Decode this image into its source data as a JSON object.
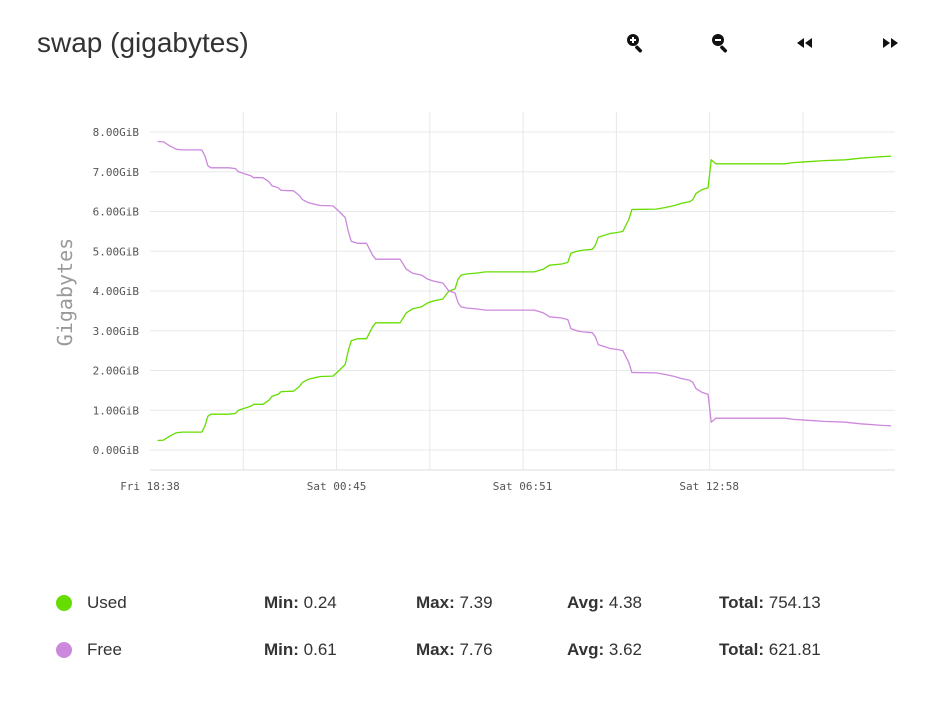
{
  "title": "swap (gigabytes)",
  "toolbar": {
    "zoom_in": "zoom-in-icon",
    "zoom_out": "zoom-out-icon",
    "rewind": "rewind-icon",
    "fast_forward": "fast-forward-icon"
  },
  "colors": {
    "used": "#66dd00",
    "free": "#cc88dd",
    "grid": "#e8e8e8"
  },
  "chart_data": {
    "type": "line",
    "ylabel": "Gigabytes",
    "xlabel": "",
    "ylim": [
      0,
      8
    ],
    "yticks": [
      "0.00GiB",
      "1.00GiB",
      "2.00GiB",
      "3.00GiB",
      "4.00GiB",
      "5.00GiB",
      "6.00GiB",
      "7.00GiB",
      "8.00GiB"
    ],
    "xticks": [
      "Fri 18:38",
      "Sat 00:45",
      "Sat 06:51",
      "Sat 12:58"
    ],
    "x_hours_since_first_tick": [
      0,
      6.1167,
      12.2167,
      18.3333
    ],
    "xlim_hours": [
      0.25,
      24.4
    ],
    "grid": true,
    "series": [
      {
        "name": "Used",
        "color": "#66dd00",
        "points": [
          [
            0.25,
            0.24
          ],
          [
            0.45,
            0.25
          ],
          [
            0.65,
            0.35
          ],
          [
            0.85,
            0.43
          ],
          [
            1.05,
            0.45
          ],
          [
            1.5,
            0.45
          ],
          [
            1.7,
            0.45
          ],
          [
            1.8,
            0.6
          ],
          [
            1.9,
            0.85
          ],
          [
            2.0,
            0.9
          ],
          [
            2.6,
            0.9
          ],
          [
            2.8,
            0.92
          ],
          [
            2.9,
            1.0
          ],
          [
            3.1,
            1.05
          ],
          [
            3.3,
            1.1
          ],
          [
            3.4,
            1.15
          ],
          [
            3.7,
            1.15
          ],
          [
            3.9,
            1.25
          ],
          [
            4.0,
            1.35
          ],
          [
            4.2,
            1.4
          ],
          [
            4.3,
            1.47
          ],
          [
            4.7,
            1.48
          ],
          [
            4.9,
            1.6
          ],
          [
            5.0,
            1.7
          ],
          [
            5.2,
            1.78
          ],
          [
            5.4,
            1.82
          ],
          [
            5.6,
            1.85
          ],
          [
            6.0,
            1.86
          ],
          [
            6.2,
            2.0
          ],
          [
            6.4,
            2.15
          ],
          [
            6.5,
            2.5
          ],
          [
            6.6,
            2.75
          ],
          [
            6.8,
            2.8
          ],
          [
            7.1,
            2.8
          ],
          [
            7.3,
            3.1
          ],
          [
            7.4,
            3.2
          ],
          [
            8.2,
            3.2
          ],
          [
            8.4,
            3.45
          ],
          [
            8.6,
            3.55
          ],
          [
            8.9,
            3.6
          ],
          [
            9.1,
            3.7
          ],
          [
            9.3,
            3.75
          ],
          [
            9.6,
            3.8
          ],
          [
            9.8,
            4.0
          ],
          [
            10.0,
            4.05
          ],
          [
            10.1,
            4.3
          ],
          [
            10.2,
            4.4
          ],
          [
            10.4,
            4.43
          ],
          [
            10.7,
            4.45
          ],
          [
            11.0,
            4.48
          ],
          [
            12.6,
            4.48
          ],
          [
            12.9,
            4.55
          ],
          [
            13.1,
            4.65
          ],
          [
            13.5,
            4.68
          ],
          [
            13.7,
            4.72
          ],
          [
            13.8,
            4.95
          ],
          [
            14.0,
            5.0
          ],
          [
            14.2,
            5.03
          ],
          [
            14.5,
            5.05
          ],
          [
            14.6,
            5.15
          ],
          [
            14.7,
            5.35
          ],
          [
            14.9,
            5.4
          ],
          [
            15.1,
            5.45
          ],
          [
            15.3,
            5.47
          ],
          [
            15.5,
            5.5
          ],
          [
            15.7,
            5.8
          ],
          [
            15.8,
            6.05
          ],
          [
            16.6,
            6.06
          ],
          [
            16.9,
            6.1
          ],
          [
            17.2,
            6.15
          ],
          [
            17.4,
            6.2
          ],
          [
            17.7,
            6.25
          ],
          [
            17.8,
            6.3
          ],
          [
            17.9,
            6.45
          ],
          [
            18.1,
            6.55
          ],
          [
            18.3,
            6.6
          ],
          [
            18.4,
            7.3
          ],
          [
            18.55,
            7.2
          ],
          [
            20.8,
            7.2
          ],
          [
            21.1,
            7.23
          ],
          [
            21.5,
            7.25
          ],
          [
            22.1,
            7.28
          ],
          [
            22.8,
            7.3
          ],
          [
            23.3,
            7.34
          ],
          [
            24.0,
            7.38
          ],
          [
            24.3,
            7.39
          ]
        ]
      },
      {
        "name": "Free",
        "color": "#cc88dd",
        "points": [
          [
            0.25,
            7.76
          ],
          [
            0.45,
            7.75
          ],
          [
            0.65,
            7.65
          ],
          [
            0.85,
            7.57
          ],
          [
            1.05,
            7.55
          ],
          [
            1.5,
            7.55
          ],
          [
            1.7,
            7.55
          ],
          [
            1.8,
            7.4
          ],
          [
            1.9,
            7.15
          ],
          [
            2.0,
            7.1
          ],
          [
            2.6,
            7.1
          ],
          [
            2.8,
            7.08
          ],
          [
            2.9,
            7.0
          ],
          [
            3.1,
            6.95
          ],
          [
            3.3,
            6.9
          ],
          [
            3.4,
            6.85
          ],
          [
            3.7,
            6.85
          ],
          [
            3.9,
            6.75
          ],
          [
            4.0,
            6.65
          ],
          [
            4.2,
            6.6
          ],
          [
            4.3,
            6.53
          ],
          [
            4.7,
            6.52
          ],
          [
            4.9,
            6.4
          ],
          [
            5.0,
            6.3
          ],
          [
            5.2,
            6.22
          ],
          [
            5.4,
            6.18
          ],
          [
            5.6,
            6.15
          ],
          [
            6.0,
            6.14
          ],
          [
            6.2,
            6.0
          ],
          [
            6.4,
            5.85
          ],
          [
            6.5,
            5.5
          ],
          [
            6.6,
            5.25
          ],
          [
            6.8,
            5.2
          ],
          [
            7.1,
            5.2
          ],
          [
            7.3,
            4.9
          ],
          [
            7.4,
            4.8
          ],
          [
            8.2,
            4.8
          ],
          [
            8.4,
            4.55
          ],
          [
            8.6,
            4.45
          ],
          [
            8.9,
            4.4
          ],
          [
            9.1,
            4.3
          ],
          [
            9.3,
            4.25
          ],
          [
            9.6,
            4.2
          ],
          [
            9.8,
            4.0
          ],
          [
            10.0,
            3.95
          ],
          [
            10.1,
            3.7
          ],
          [
            10.2,
            3.6
          ],
          [
            10.4,
            3.57
          ],
          [
            10.7,
            3.55
          ],
          [
            11.0,
            3.52
          ],
          [
            12.6,
            3.52
          ],
          [
            12.9,
            3.45
          ],
          [
            13.1,
            3.35
          ],
          [
            13.5,
            3.32
          ],
          [
            13.7,
            3.28
          ],
          [
            13.8,
            3.05
          ],
          [
            14.0,
            3.0
          ],
          [
            14.2,
            2.97
          ],
          [
            14.5,
            2.95
          ],
          [
            14.6,
            2.85
          ],
          [
            14.7,
            2.65
          ],
          [
            14.9,
            2.6
          ],
          [
            15.1,
            2.55
          ],
          [
            15.3,
            2.53
          ],
          [
            15.5,
            2.5
          ],
          [
            15.7,
            2.2
          ],
          [
            15.8,
            1.95
          ],
          [
            16.6,
            1.94
          ],
          [
            16.9,
            1.9
          ],
          [
            17.2,
            1.85
          ],
          [
            17.4,
            1.8
          ],
          [
            17.7,
            1.75
          ],
          [
            17.8,
            1.7
          ],
          [
            17.9,
            1.55
          ],
          [
            18.1,
            1.45
          ],
          [
            18.3,
            1.4
          ],
          [
            18.4,
            0.7
          ],
          [
            18.55,
            0.8
          ],
          [
            20.8,
            0.8
          ],
          [
            21.1,
            0.77
          ],
          [
            21.5,
            0.75
          ],
          [
            22.1,
            0.72
          ],
          [
            22.8,
            0.7
          ],
          [
            23.3,
            0.66
          ],
          [
            24.0,
            0.62
          ],
          [
            24.3,
            0.61
          ]
        ]
      }
    ]
  },
  "legend": [
    {
      "name": "Used",
      "color": "#66dd00",
      "min_label": "Min:",
      "min": "0.24",
      "max_label": "Max:",
      "max": "7.39",
      "avg_label": "Avg:",
      "avg": "4.38",
      "total_label": "Total:",
      "total": "754.13"
    },
    {
      "name": "Free",
      "color": "#cc88dd",
      "min_label": "Min:",
      "min": "0.61",
      "max_label": "Max:",
      "max": "7.76",
      "avg_label": "Avg:",
      "avg": "3.62",
      "total_label": "Total:",
      "total": "621.81"
    }
  ]
}
